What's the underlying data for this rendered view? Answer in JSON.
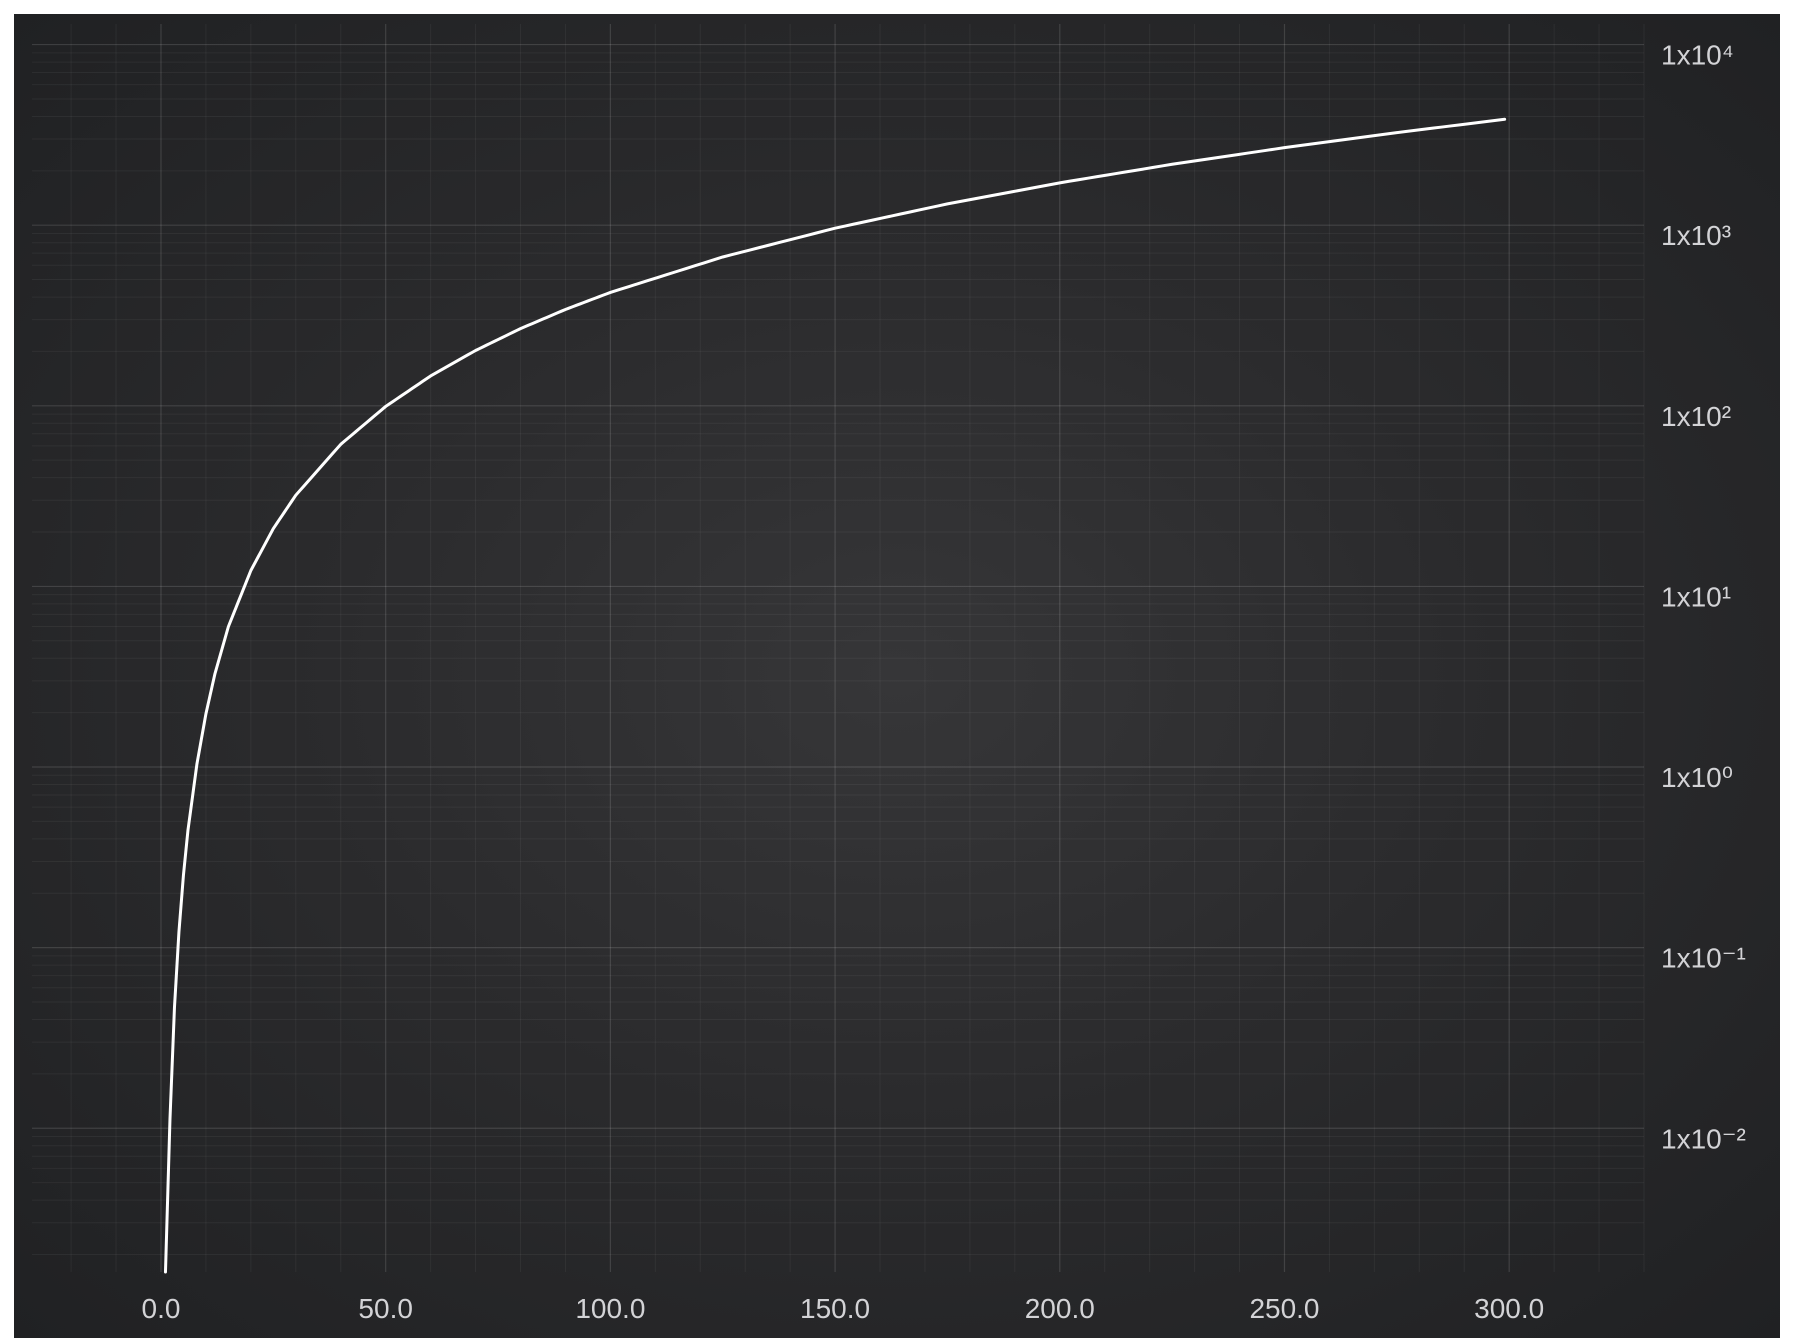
{
  "chart_data": {
    "type": "line",
    "title": "",
    "xlabel": "",
    "ylabel": "",
    "xlim": [
      -28.7,
      330
    ],
    "ylim": [
      0.0016,
      13000
    ],
    "yscale": "log",
    "yaxis_position": "right",
    "grid": true,
    "legend": "none",
    "x_ticks": [
      "0.0",
      "50.0",
      "100.0",
      "150.0",
      "200.0",
      "250.0",
      "300.0"
    ],
    "x_tick_values": [
      0,
      50,
      100,
      150,
      200,
      250,
      300
    ],
    "y_ticks": [
      {
        "base": "1x10",
        "exp": "⁴",
        "value": 10000
      },
      {
        "base": "1x10",
        "exp": "³",
        "value": 1000
      },
      {
        "base": "1x10",
        "exp": "²",
        "value": 100
      },
      {
        "base": "1x10",
        "exp": "¹",
        "value": 10
      },
      {
        "base": "1x10",
        "exp": "⁰",
        "value": 1
      },
      {
        "base": "1x10",
        "exp": "⁻¹",
        "value": 0.1
      },
      {
        "base": "1x10",
        "exp": "⁻²",
        "value": 0.01
      }
    ],
    "series": [
      {
        "color": "#ffffff",
        "x": [
          1,
          2,
          3,
          4,
          5,
          6,
          8,
          10,
          12,
          15,
          20,
          25,
          30,
          40,
          50,
          60,
          70,
          80,
          90,
          100,
          125,
          150,
          175,
          200,
          225,
          250,
          275,
          299
        ],
        "y": [
          0.0016,
          0.0112,
          0.0466,
          0.1226,
          0.2521,
          0.4459,
          1.04,
          1.97,
          3.28,
          5.99,
          12.25,
          20.91,
          32.0,
          61.2,
          99.2,
          146.3,
          202.4,
          267.5,
          341.5,
          424.4,
          666.7,
          962.4,
          1312.0,
          1716.0,
          2174.0,
          2687.0,
          3255.0,
          3859.0
        ]
      }
    ],
    "colors": {
      "background": "#2d2d2f",
      "line": "#ffffff",
      "tick_text": "#d3d3d6"
    }
  }
}
